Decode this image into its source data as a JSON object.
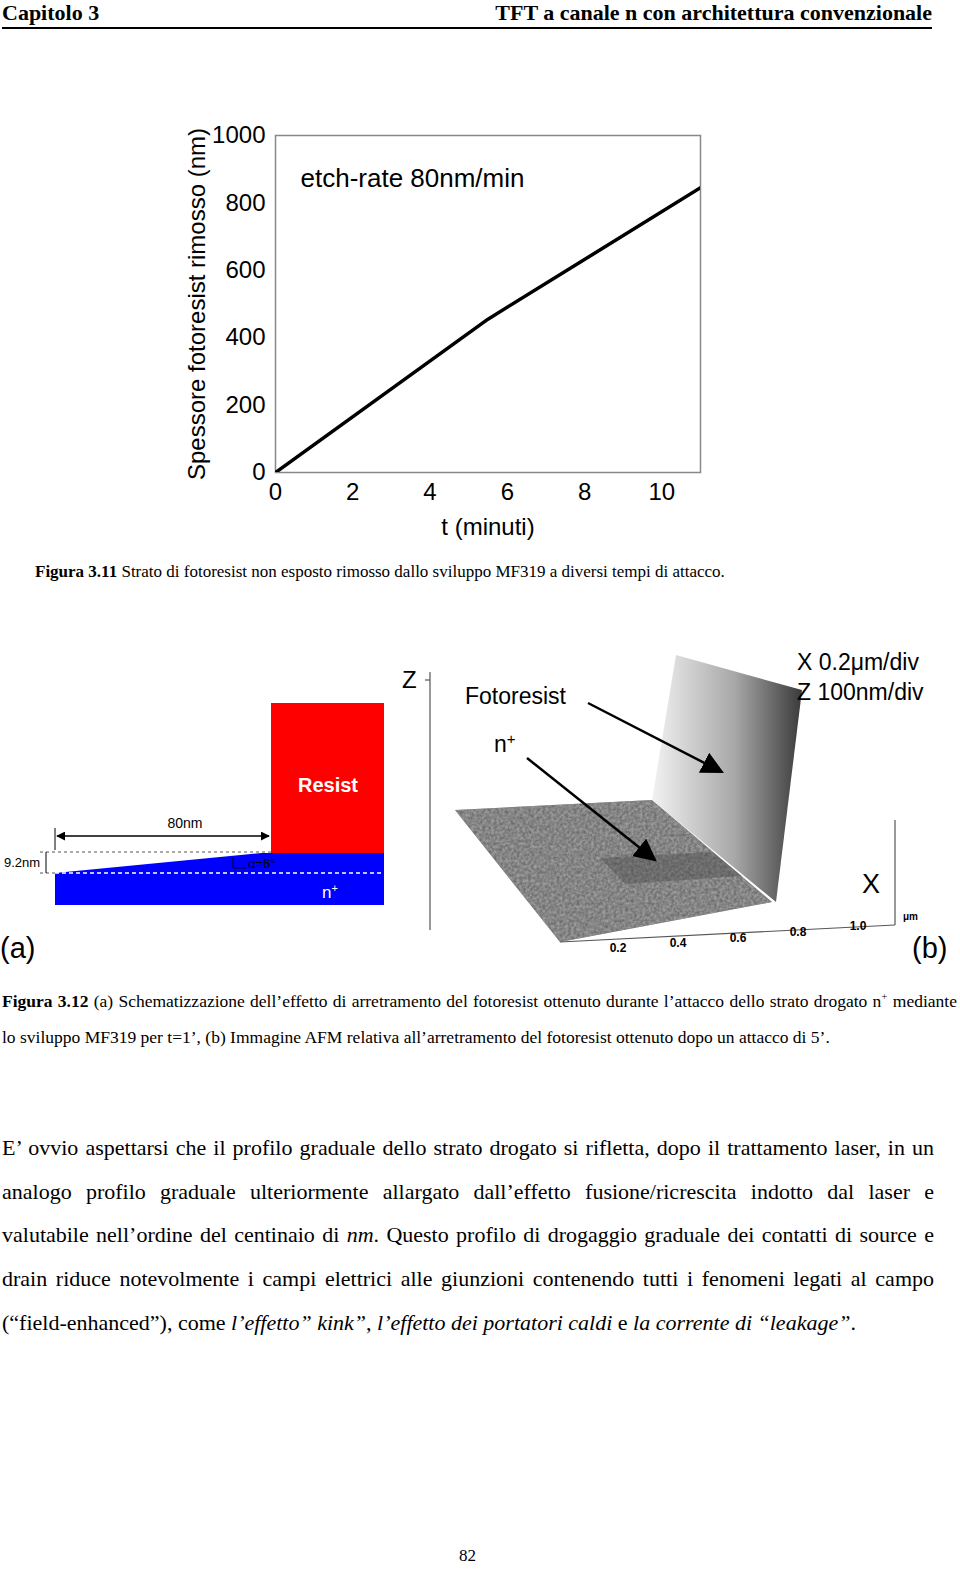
{
  "header": {
    "left": "Capitolo 3",
    "right": "TFT a canale n con architettura convenzionale"
  },
  "chart_data": {
    "type": "line",
    "annotation": "etch-rate 80nm/min",
    "x_label": "t (minuti)",
    "y_label": "Spessore fotoresist rimosso (nm)",
    "x": [
      0,
      5.5,
      11
    ],
    "values": [
      0,
      455,
      845
    ],
    "color": "#000000",
    "xlim": [
      0,
      11
    ],
    "xticks": [
      0,
      2,
      4,
      6,
      8,
      10
    ],
    "ylim": [
      0,
      1000
    ],
    "yticks": [
      0,
      200,
      400,
      600,
      800,
      1000
    ],
    "grid": false
  },
  "figure_3_11_caption": {
    "label": "Figura 3.11",
    "text": " Strato di fotoresist non esposto rimosso dallo sviluppo MF319 a diversi tempi di attacco."
  },
  "figure_3_12": {
    "panel_a": {
      "tag": "(a)",
      "resist": "Resist",
      "layer": {
        "base": "n",
        "sup": "+"
      },
      "width": "80nm",
      "height": "9.2nm",
      "angle": "α=6°"
    },
    "panel_b": {
      "tag": "(b)",
      "z_axis": "Z",
      "x_axis": "X",
      "photoresist": "Fotoresist",
      "layer": {
        "base": "n",
        "sup": "+"
      },
      "scale_x": "X 0.2μm/div",
      "scale_z": "Z 100nm/div",
      "x_ticks": [
        "0.2",
        "0.4",
        "0.6",
        "0.8",
        "1.0"
      ],
      "x_unit": "μm"
    },
    "caption": {
      "label": "Figura 3.12",
      "parts": [
        {
          "text": " (a) Schematizzazione dell’effetto di arretramento del fotoresist ottenuto durante l’attacco dello strato drogato n"
        },
        {
          "sup": "+"
        },
        {
          "text": " mediante lo sviluppo MF319 per t=1’, (b) Immagine AFM relativa all’arretramento del fotoresist ottenuto dopo un attacco di 5’."
        }
      ]
    }
  },
  "body": [
    {
      "text": "E’ ovvio aspettarsi che il profilo graduale dello strato drogato si rifletta, dopo il trattamento laser, in un analogo profilo graduale ulteriormente allargato dall’effetto fusione/ricrescita indotto dal laser e valutabile nell’ordine del centinaio di ",
      "italic": false
    },
    {
      "text": "nm",
      "italic": true
    },
    {
      "text": ". Questo profilo di drogaggio graduale dei contatti di source e drain riduce notevolmente i campi elettrici alle giunzioni contenendo tutti i fenomeni legati al campo (“field-enhanced”), come ",
      "italic": false
    },
    {
      "text": "l’effetto” kink”",
      "italic": true
    },
    {
      "text": ", ",
      "italic": false
    },
    {
      "text": "l’effetto dei portatori caldi",
      "italic": true
    },
    {
      "text": " e ",
      "italic": false
    },
    {
      "text": "la corrente di “leakage”",
      "italic": true
    },
    {
      "text": ".",
      "italic": false
    }
  ],
  "page_number": "82"
}
